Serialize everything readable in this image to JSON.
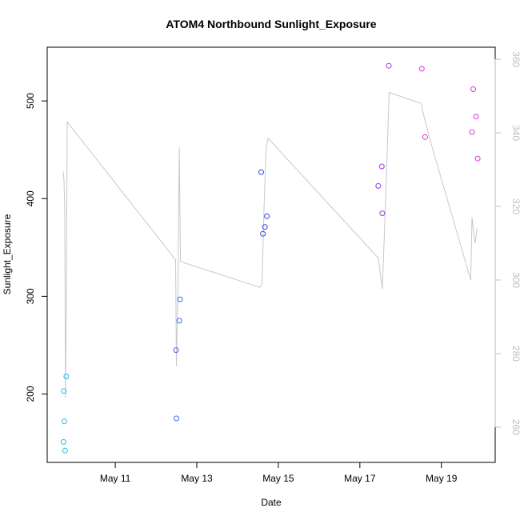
{
  "chart_data": {
    "type": "scatter",
    "title": "ATOM4 Northbound Sunlight_Exposure",
    "xlabel": "Date",
    "ylabel": "Sunlight_Exposure",
    "x_day_range": [
      9.33,
      20.32
    ],
    "ylim_left": [
      130,
      555
    ],
    "ylim_right": [
      250.4,
      363.3
    ],
    "x_ticks": [
      {
        "day": 11,
        "label": "May 11"
      },
      {
        "day": 13,
        "label": "May 13"
      },
      {
        "day": 15,
        "label": "May 15"
      },
      {
        "day": 17,
        "label": "May 17"
      },
      {
        "day": 19,
        "label": "May 19"
      }
    ],
    "y_ticks_left": [
      200,
      300,
      400,
      500
    ],
    "y_ticks_right": [
      260,
      280,
      300,
      320,
      340,
      360
    ],
    "series": [
      {
        "name": "Sunlight_Exposure",
        "kind": "points",
        "axis": "left",
        "points": [
          {
            "day": 9.73,
            "value": 151,
            "color": "#2bb2f0"
          },
          {
            "day": 9.77,
            "value": 142,
            "color": "#2bb2f0"
          },
          {
            "day": 9.75,
            "value": 172,
            "color": "#2bb2f0"
          },
          {
            "day": 9.74,
            "value": 203,
            "color": "#2bb2f0"
          },
          {
            "day": 9.8,
            "value": 218,
            "color": "#2bb2f0"
          },
          {
            "day": 12.5,
            "value": 175,
            "color": "#3b6cf0"
          },
          {
            "day": 12.49,
            "value": 245,
            "color": "#3b6cf0"
          },
          {
            "day": 12.57,
            "value": 275,
            "color": "#3b6cf0"
          },
          {
            "day": 12.59,
            "value": 297,
            "color": "#3b6cf0"
          },
          {
            "day": 14.58,
            "value": 427,
            "color": "#3040e0"
          },
          {
            "day": 14.62,
            "value": 364,
            "color": "#3040e0"
          },
          {
            "day": 14.67,
            "value": 371,
            "color": "#3040e0"
          },
          {
            "day": 14.72,
            "value": 382,
            "color": "#3040e0"
          },
          {
            "day": 17.45,
            "value": 413,
            "color": "#9a38e8"
          },
          {
            "day": 17.54,
            "value": 433,
            "color": "#9a38e8"
          },
          {
            "day": 17.55,
            "value": 385,
            "color": "#9a38e8"
          },
          {
            "day": 17.71,
            "value": 536,
            "color": "#9a38e8"
          },
          {
            "day": 18.52,
            "value": 533,
            "color": "#e030e0"
          },
          {
            "day": 18.6,
            "value": 463,
            "color": "#e030e0"
          },
          {
            "day": 19.75,
            "value": 468,
            "color": "#e030e0"
          },
          {
            "day": 19.78,
            "value": 512,
            "color": "#e030e0"
          },
          {
            "day": 19.85,
            "value": 484,
            "color": "#e030e0"
          },
          {
            "day": 19.89,
            "value": 441,
            "color": "#e030e0"
          }
        ]
      },
      {
        "name": "right-axis line",
        "kind": "line",
        "axis": "right",
        "color": "#c8c8c8",
        "points": [
          {
            "day": 9.72,
            "value": 329.5
          },
          {
            "day": 9.74,
            "value": 327.5
          },
          {
            "day": 9.76,
            "value": 320.0
          },
          {
            "day": 9.78,
            "value": 268.0
          },
          {
            "day": 9.8,
            "value": 292.0
          },
          {
            "day": 9.82,
            "value": 343.0
          },
          {
            "day": 12.48,
            "value": 305.5
          },
          {
            "day": 12.5,
            "value": 276.5
          },
          {
            "day": 12.54,
            "value": 300.5
          },
          {
            "day": 12.57,
            "value": 336.0
          },
          {
            "day": 12.6,
            "value": 305.0
          },
          {
            "day": 14.55,
            "value": 298.0
          },
          {
            "day": 14.6,
            "value": 299.0
          },
          {
            "day": 14.65,
            "value": 320.0
          },
          {
            "day": 14.7,
            "value": 335.5
          },
          {
            "day": 14.75,
            "value": 338.5
          },
          {
            "day": 17.45,
            "value": 306.0
          },
          {
            "day": 17.55,
            "value": 297.5
          },
          {
            "day": 17.6,
            "value": 312.0
          },
          {
            "day": 17.72,
            "value": 351.0
          },
          {
            "day": 18.5,
            "value": 348.0
          },
          {
            "day": 18.55,
            "value": 345.5
          },
          {
            "day": 18.75,
            "value": 337.0
          },
          {
            "day": 19.72,
            "value": 300.0
          },
          {
            "day": 19.75,
            "value": 317.0
          },
          {
            "day": 19.8,
            "value": 312.0
          },
          {
            "day": 19.83,
            "value": 310.0
          },
          {
            "day": 19.87,
            "value": 314.0
          }
        ]
      }
    ]
  }
}
